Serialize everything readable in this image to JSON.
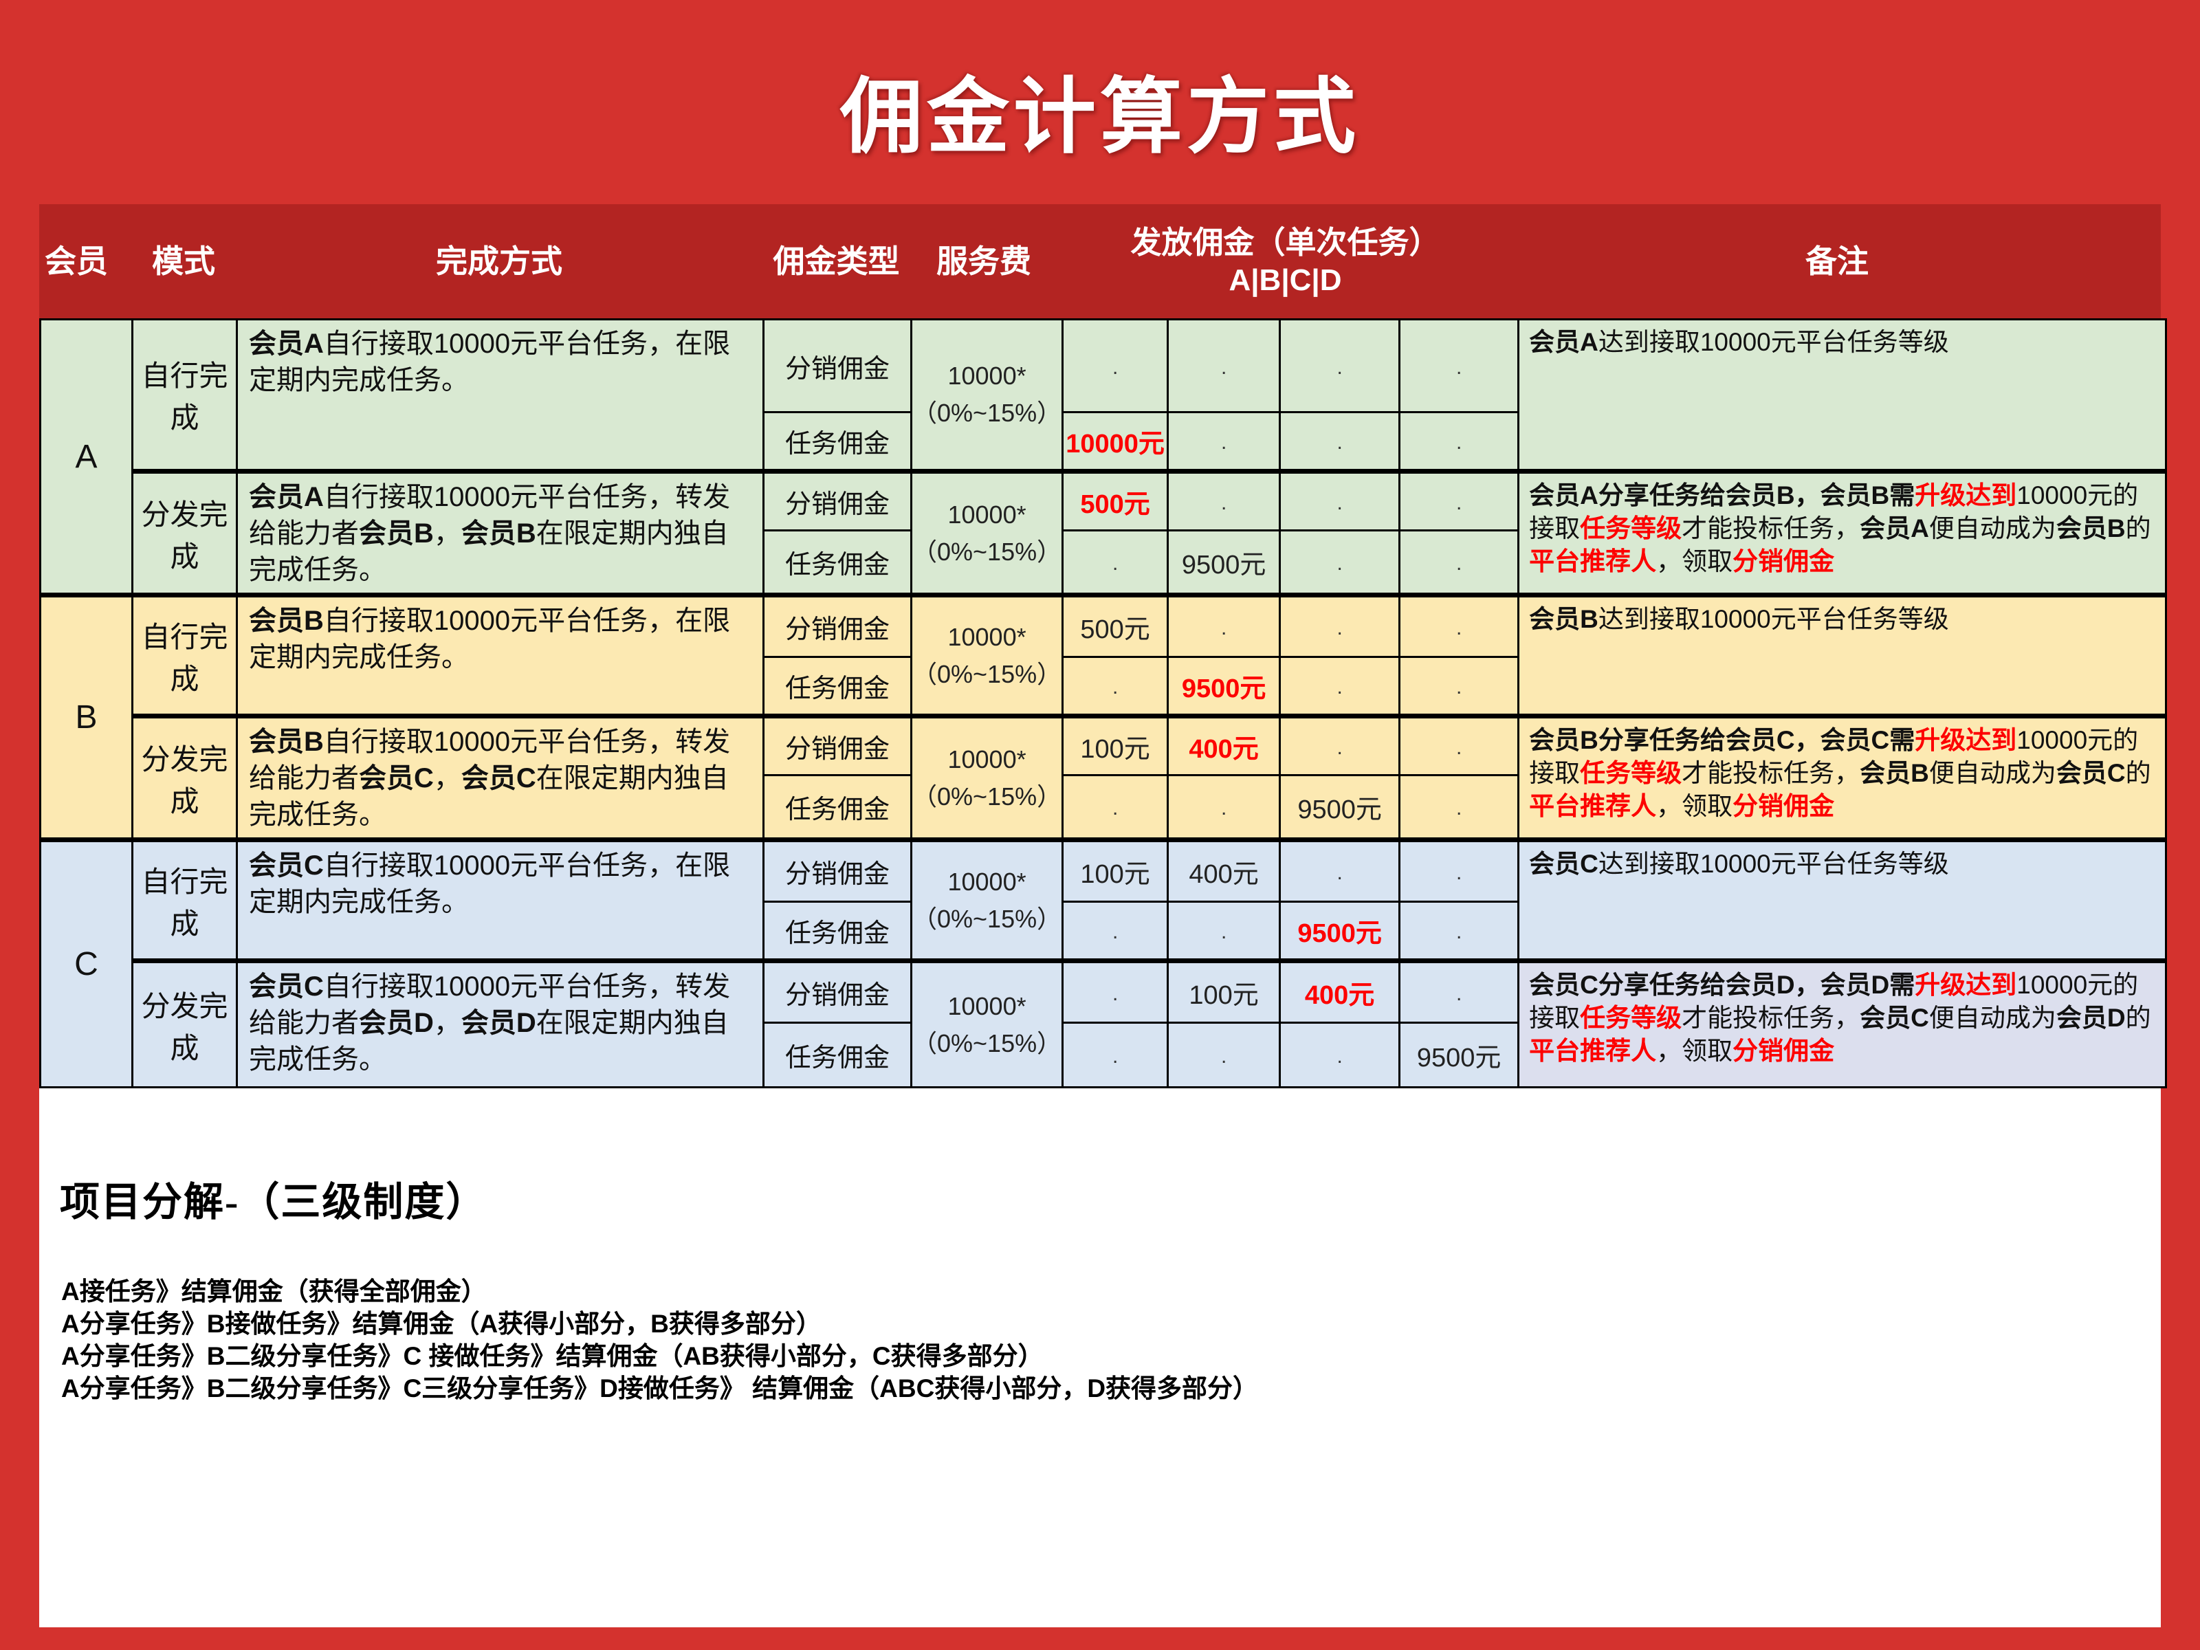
{
  "title": "佣金计算方式",
  "colors": {
    "page_red": "#d4322e",
    "header_red": "#b32422",
    "group_a_green": "#d9e9d2",
    "group_b_yellow": "#fce9b2",
    "group_c_blue": "#d8e4f2",
    "note_lavender": "#dcdfee",
    "highlight_red": "#fd0100"
  },
  "header": {
    "member": "会员",
    "mode": "模式",
    "method": "完成方式",
    "commission_type": "佣金类型",
    "service_fee": "服务费",
    "payout_title": "发放佣金（单次任务）",
    "payout_sub": "A|B|C|D",
    "note": "备注"
  },
  "labels": {
    "distribution": "分销佣金",
    "task": "任务佣金",
    "self": "自行完成",
    "dispatch": "分发完成"
  },
  "fee": {
    "line1": "10000*",
    "line2": "（0%~15%）"
  },
  "groups": [
    {
      "member": "A",
      "self": {
        "method": [
          {
            "t": "会员A",
            "b": true
          },
          {
            "t": "自行接取10000元平台任务，在限定期内完成任务。"
          }
        ],
        "note": [
          {
            "t": "会员A",
            "b": true
          },
          {
            "t": "达到接取10000元平台任务等级"
          }
        ],
        "dist": [
          [
            {
              "t": ".",
              "dot": true
            }
          ],
          [
            {
              "t": ".",
              "dot": true
            }
          ],
          [
            {
              "t": ".",
              "dot": true
            }
          ],
          [
            {
              "t": ".",
              "dot": true
            }
          ]
        ],
        "task": [
          [
            {
              "t": "10000元",
              "r": true
            }
          ],
          [
            {
              "t": ".",
              "dot": true
            }
          ],
          [
            {
              "t": ".",
              "dot": true
            }
          ],
          [
            {
              "t": ".",
              "dot": true
            }
          ]
        ]
      },
      "dispatch": {
        "method": [
          {
            "t": "会员A",
            "b": true
          },
          {
            "t": "自行接取10000元平台任务，转发给能力者"
          },
          {
            "t": "会员B",
            "b": true
          },
          {
            "t": "，"
          },
          {
            "t": "会员B",
            "b": true
          },
          {
            "t": "在限定期内独自完成任务。"
          }
        ],
        "note": [
          {
            "t": "会员A分享任务给会员B，会员B需",
            "b": true
          },
          {
            "t": "升级达到",
            "r": true
          },
          {
            "t": "10000元的接取"
          },
          {
            "t": "任务等级",
            "r": true
          },
          {
            "t": "才能投标任务，"
          },
          {
            "t": "会员A",
            "b": true
          },
          {
            "t": "便自动成为"
          },
          {
            "t": "会员B",
            "b": true
          },
          {
            "t": "的"
          },
          {
            "t": "平台推荐人",
            "r": true
          },
          {
            "t": "，领取"
          },
          {
            "t": "分销佣金",
            "r": true
          }
        ],
        "dist": [
          [
            {
              "t": "500元",
              "r": true
            }
          ],
          [
            {
              "t": ".",
              "dot": true
            }
          ],
          [
            {
              "t": ".",
              "dot": true
            }
          ],
          [
            {
              "t": ".",
              "dot": true
            }
          ]
        ],
        "task": [
          [
            {
              "t": ".",
              "dot": true
            }
          ],
          [
            {
              "t": "9500元"
            }
          ],
          [
            {
              "t": ".",
              "dot": true
            }
          ],
          [
            {
              "t": ".",
              "dot": true
            }
          ]
        ]
      }
    },
    {
      "member": "B",
      "self": {
        "method": [
          {
            "t": "会员B",
            "b": true
          },
          {
            "t": "自行接取10000元平台任务，在限定期内完成任务。"
          }
        ],
        "note": [
          {
            "t": "会员B",
            "b": true
          },
          {
            "t": "达到接取10000元平台任务等级"
          }
        ],
        "dist": [
          [
            {
              "t": "500元"
            }
          ],
          [
            {
              "t": ".",
              "dot": true
            }
          ],
          [
            {
              "t": ".",
              "dot": true
            }
          ],
          [
            {
              "t": ".",
              "dot": true
            }
          ]
        ],
        "task": [
          [
            {
              "t": ".",
              "dot": true
            }
          ],
          [
            {
              "t": "9500元",
              "r": true
            }
          ],
          [
            {
              "t": ".",
              "dot": true
            }
          ],
          [
            {
              "t": ".",
              "dot": true
            }
          ]
        ]
      },
      "dispatch": {
        "method": [
          {
            "t": "会员B",
            "b": true
          },
          {
            "t": "自行接取10000元平台任务，转发给能力者"
          },
          {
            "t": "会员C",
            "b": true
          },
          {
            "t": "，"
          },
          {
            "t": "会员C",
            "b": true
          },
          {
            "t": "在限定期内独自完成任务。"
          }
        ],
        "note": [
          {
            "t": "会员B分享任务给会员C，会员C需",
            "b": true
          },
          {
            "t": "升级达到",
            "r": true
          },
          {
            "t": "10000元的接取"
          },
          {
            "t": "任务等级",
            "r": true
          },
          {
            "t": "才能投标任务，"
          },
          {
            "t": "会员B",
            "b": true
          },
          {
            "t": "便自动成为"
          },
          {
            "t": "会员C",
            "b": true
          },
          {
            "t": "的"
          },
          {
            "t": "平台推荐人",
            "r": true
          },
          {
            "t": "，领取"
          },
          {
            "t": "分销佣金",
            "r": true
          }
        ],
        "dist": [
          [
            {
              "t": "100元"
            }
          ],
          [
            {
              "t": "400元",
              "r": true
            }
          ],
          [
            {
              "t": ".",
              "dot": true
            }
          ],
          [
            {
              "t": ".",
              "dot": true
            }
          ]
        ],
        "task": [
          [
            {
              "t": ".",
              "dot": true
            }
          ],
          [
            {
              "t": ".",
              "dot": true
            }
          ],
          [
            {
              "t": "9500元"
            }
          ],
          [
            {
              "t": ".",
              "dot": true
            }
          ]
        ]
      }
    },
    {
      "member": "C",
      "self": {
        "method": [
          {
            "t": "会员C",
            "b": true
          },
          {
            "t": "自行接取10000元平台任务，在限定期内完成任务。"
          }
        ],
        "note": [
          {
            "t": "会员C",
            "b": true
          },
          {
            "t": "达到接取10000元平台任务等级"
          }
        ],
        "dist": [
          [
            {
              "t": "100元"
            }
          ],
          [
            {
              "t": "400元"
            }
          ],
          [
            {
              "t": ".",
              "dot": true
            }
          ],
          [
            {
              "t": ".",
              "dot": true
            }
          ]
        ],
        "task": [
          [
            {
              "t": ".",
              "dot": true
            }
          ],
          [
            {
              "t": ".",
              "dot": true
            }
          ],
          [
            {
              "t": "9500元",
              "r": true
            }
          ],
          [
            {
              "t": ".",
              "dot": true
            }
          ]
        ]
      },
      "dispatch": {
        "method": [
          {
            "t": "会员C",
            "b": true
          },
          {
            "t": "自行接取10000元平台任务，转发给能力者"
          },
          {
            "t": "会员D",
            "b": true
          },
          {
            "t": "，"
          },
          {
            "t": "会员D",
            "b": true
          },
          {
            "t": "在限定期内独自完成任务。"
          }
        ],
        "note": [
          {
            "t": "会员C分享任务给会员D，会员D需",
            "b": true
          },
          {
            "t": "升级达到",
            "r": true
          },
          {
            "t": "10000元的接取"
          },
          {
            "t": "任务等级",
            "r": true
          },
          {
            "t": "才能投标任务，"
          },
          {
            "t": "会员C",
            "b": true
          },
          {
            "t": "便自动成为"
          },
          {
            "t": "会员D",
            "b": true
          },
          {
            "t": "的"
          },
          {
            "t": "平台推荐人",
            "r": true
          },
          {
            "t": "，领取"
          },
          {
            "t": "分销佣金",
            "r": true
          }
        ],
        "dist": [
          [
            {
              "t": ".",
              "dot": true
            }
          ],
          [
            {
              "t": "100元"
            }
          ],
          [
            {
              "t": "400元",
              "r": true
            }
          ],
          [
            {
              "t": ".",
              "dot": true
            }
          ]
        ],
        "task": [
          [
            {
              "t": ".",
              "dot": true
            }
          ],
          [
            {
              "t": ".",
              "dot": true
            }
          ],
          [
            {
              "t": ".",
              "dot": true
            }
          ],
          [
            {
              "t": "9500元"
            }
          ]
        ]
      }
    }
  ],
  "breakdown": {
    "heading": "项目分解-（三级制度）",
    "lines": [
      "A接任务》结算佣金（获得全部佣金）",
      "A分享任务》B接做任务》结算佣金（A获得小部分，B获得多部分）",
      "A分享任务》B二级分享任务》C 接做任务》结算佣金（AB获得小部分，C获得多部分）",
      "A分享任务》B二级分享任务》C三级分享任务》D接做任务》 结算佣金（ABC获得小部分，D获得多部分）"
    ]
  }
}
